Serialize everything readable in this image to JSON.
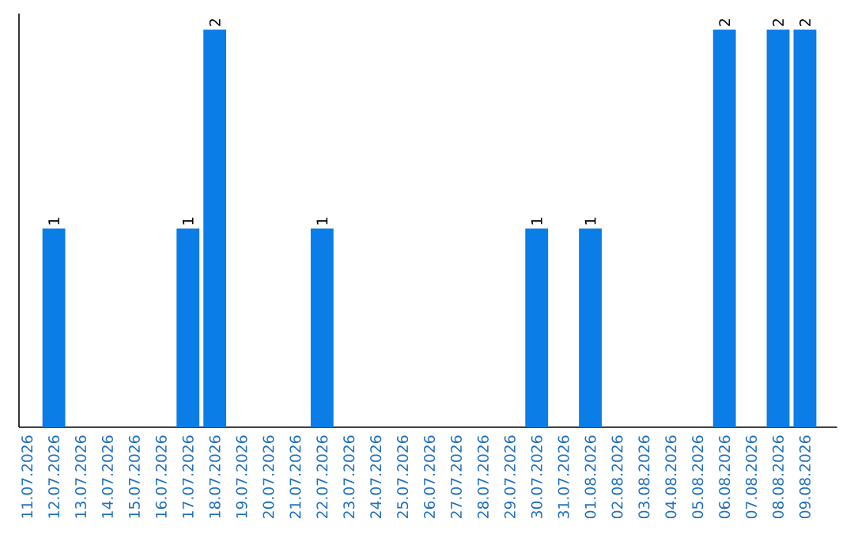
{
  "chart_data": {
    "type": "bar",
    "color": "#0a7de6",
    "categories": [
      "11.07.2026",
      "12.07.2026",
      "13.07.2026",
      "14.07.2026",
      "15.07.2026",
      "16.07.2026",
      "17.07.2026",
      "18.07.2026",
      "19.07.2026",
      "20.07.2026",
      "21.07.2026",
      "22.07.2026",
      "23.07.2026",
      "24.07.2026",
      "25.07.2026",
      "26.07.2026",
      "27.07.2026",
      "28.07.2026",
      "29.07.2026",
      "30.07.2026",
      "31.07.2026",
      "01.08.2026",
      "02.08.2026",
      "03.08.2026",
      "04.08.2026",
      "05.08.2026",
      "06.08.2026",
      "07.08.2026",
      "08.08.2026",
      "09.08.2026"
    ],
    "values": [
      0,
      1,
      0,
      0,
      0,
      0,
      1,
      2,
      0,
      0,
      0,
      1,
      0,
      0,
      0,
      0,
      0,
      0,
      0,
      1,
      0,
      1,
      0,
      0,
      0,
      0,
      2,
      0,
      2,
      2
    ],
    "value_labels": [
      null,
      "1",
      null,
      null,
      null,
      null,
      "1",
      "2",
      null,
      null,
      null,
      "1",
      null,
      null,
      null,
      null,
      null,
      null,
      null,
      "1",
      null,
      "1",
      null,
      null,
      null,
      null,
      "2",
      null,
      "2",
      "2"
    ],
    "ylim": [
      0,
      2.08
    ],
    "tick_labels": "x"
  }
}
